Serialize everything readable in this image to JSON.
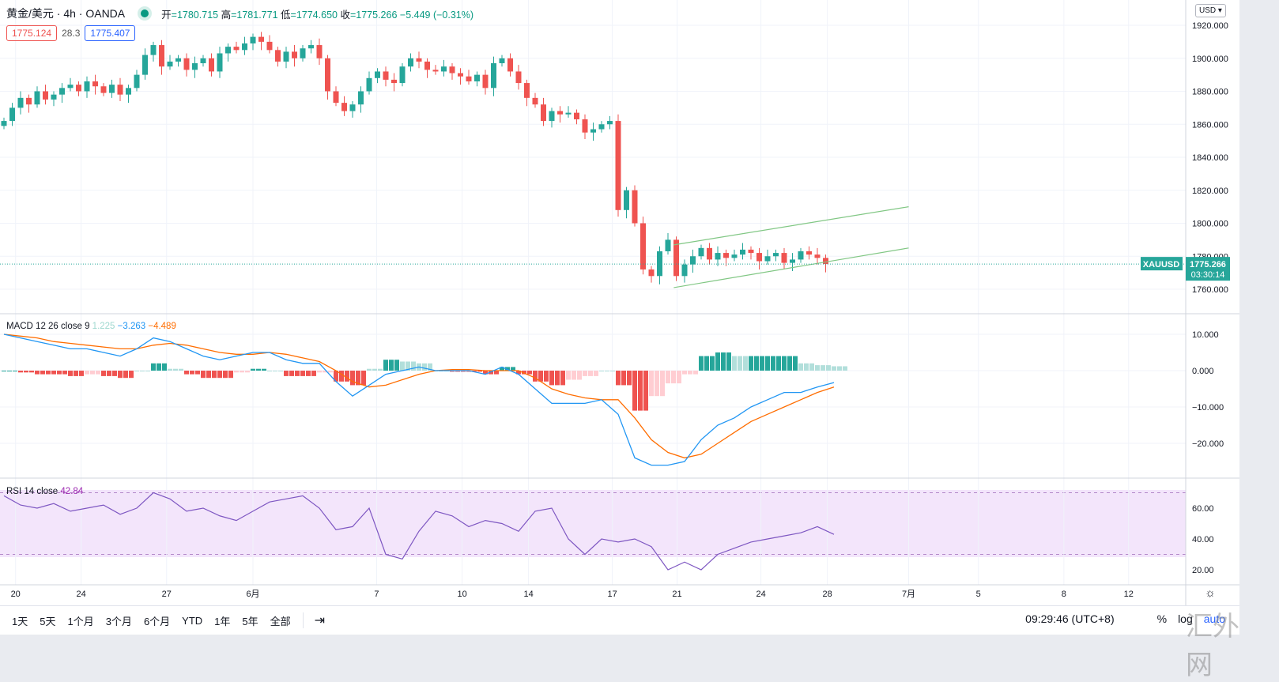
{
  "header": {
    "symbol": "黄金/美元 · 4h · OANDA",
    "open_label": "开",
    "open": "=1780.715",
    "high_label": "高",
    "high": "=1781.771",
    "low_label": "低",
    "low": "=1774.650",
    "close_label": "收",
    "close": "=1775.266",
    "change": "−5.449 (−0.31%)",
    "bid": "1775.124",
    "spread": "28.3",
    "ask": "1775.407"
  },
  "currency": "USD",
  "price_label": {
    "symbol": "XAUUSD",
    "price": "1775.266",
    "countdown": "03:30:14"
  },
  "macd_legend": {
    "name": "MACD 12 26 close 9",
    "hist": "1.225",
    "macd": "−3.263",
    "signal": "−4.489"
  },
  "rsi_legend": {
    "name": "RSI 14 close",
    "value": "42.84"
  },
  "toolbar": {
    "ranges": [
      "1天",
      "5天",
      "1个月",
      "3个月",
      "6个月",
      "YTD",
      "1年",
      "5年",
      "全部"
    ],
    "time": "09:29:46 (UTC+8)",
    "percent": "%",
    "log": "log",
    "auto": "auto"
  },
  "watermark": "汇外网",
  "colors": {
    "up": "#26a69a",
    "down": "#ef5350",
    "macd": "#2196f3",
    "signal": "#ff6d00",
    "rsi": "#7e57c2",
    "channel": "#4caf50"
  },
  "chart_data": {
    "type": "candlestick",
    "price_axis": {
      "ticks": [
        1760,
        1780,
        1800,
        1820,
        1840,
        1860,
        1880,
        1900,
        1920
      ],
      "labels": [
        "1760.000",
        "1780.000",
        "1800.000",
        "1820.000",
        "1840.000",
        "1860.000",
        "1880.000",
        "1900.000",
        "1920.000"
      ],
      "range": [
        1752,
        1935
      ]
    },
    "last_price": 1775.266,
    "closes": [
      1862,
      1870,
      1876,
      1872,
      1880,
      1875,
      1878,
      1882,
      1884,
      1880,
      1886,
      1883,
      1879,
      1884,
      1878,
      1882,
      1890,
      1902,
      1908,
      1895,
      1898,
      1900,
      1893,
      1897,
      1900,
      1892,
      1903,
      1907,
      1905,
      1909,
      1913,
      1910,
      1905,
      1898,
      1904,
      1900,
      1906,
      1908,
      1900,
      1880,
      1873,
      1868,
      1872,
      1880,
      1888,
      1892,
      1887,
      1885,
      1895,
      1900,
      1898,
      1893,
      1892,
      1895,
      1891,
      1889,
      1886,
      1890,
      1882,
      1897,
      1900,
      1892,
      1885,
      1876,
      1872,
      1862,
      1868,
      1866,
      1867,
      1863,
      1855,
      1857,
      1860,
      1862,
      1808,
      1820,
      1800,
      1772,
      1768,
      1783,
      1790,
      1768,
      1775,
      1780,
      1785,
      1778,
      1782,
      1779,
      1781,
      1784,
      1782,
      1777,
      1780,
      1782,
      1776,
      1778,
      1783,
      1781,
      1779,
      1775.266
    ],
    "channel": [
      {
        "from": [
          80.7,
          1786.9
        ],
        "to": [
          109,
          1810
        ]
      },
      {
        "from": [
          80.7,
          1761
        ],
        "to": [
          109,
          1785
        ]
      }
    ],
    "time_axis": [
      {
        "label": "20",
        "bar": 1.4
      },
      {
        "label": "24",
        "bar": 9.3
      },
      {
        "label": "27",
        "bar": 19.6
      },
      {
        "label": "6月",
        "bar": 30
      },
      {
        "label": "7",
        "bar": 44.9
      },
      {
        "label": "10",
        "bar": 55.2
      },
      {
        "label": "14",
        "bar": 63.2
      },
      {
        "label": "17",
        "bar": 73.3
      },
      {
        "label": "21",
        "bar": 81.1
      },
      {
        "label": "24",
        "bar": 91.2
      },
      {
        "label": "28",
        "bar": 99.2
      },
      {
        "label": "7月",
        "bar": 109
      },
      {
        "label": "5",
        "bar": 117.4
      },
      {
        "label": "8",
        "bar": 127.7
      },
      {
        "label": "12",
        "bar": 135.5
      }
    ],
    "macd": {
      "ticks": [
        10,
        0,
        -10,
        -20
      ],
      "labels": [
        "10.000",
        "0.000",
        "−10.000",
        "−20.000"
      ],
      "macd": [
        10,
        9,
        8,
        7,
        6,
        6,
        5,
        4,
        6,
        9,
        8,
        6,
        4,
        3,
        4,
        5,
        5,
        3,
        2,
        2,
        -3,
        -7,
        -4,
        -1,
        0,
        1,
        0,
        0,
        0,
        -1,
        1,
        -1,
        -5,
        -9,
        -9,
        -9,
        -8,
        -12,
        -24,
        -26,
        -26,
        -25,
        -19,
        -15,
        -13,
        -10,
        -8,
        -6,
        -6,
        -4.5,
        -3.3
      ],
      "signal": [
        10,
        9.5,
        9,
        8,
        7.5,
        7,
        6.5,
        6,
        6,
        7,
        7.5,
        7,
        6,
        5,
        4.5,
        4.5,
        5,
        4.5,
        3.5,
        2.5,
        0,
        -3,
        -4.5,
        -4,
        -2.5,
        -1,
        0,
        0.3,
        0.3,
        0,
        0,
        0,
        -2,
        -5,
        -6.5,
        -7.5,
        -8,
        -8,
        -13,
        -19,
        -22.5,
        -24,
        -23,
        -20,
        -17,
        -14,
        -12,
        -10,
        -8,
        -6,
        -4.5
      ]
    },
    "rsi": {
      "ticks": [
        60,
        40,
        20
      ],
      "labels": [
        "60.00",
        "40.00",
        "20.00"
      ],
      "bands": [
        70,
        30
      ],
      "values": [
        68,
        62,
        60,
        63,
        58,
        60,
        62,
        56,
        60,
        70,
        66,
        58,
        60,
        55,
        52,
        58,
        64,
        66,
        68,
        60,
        46,
        48,
        60,
        30,
        27,
        45,
        58,
        55,
        48,
        52,
        50,
        45,
        58,
        60,
        40,
        30,
        40,
        38,
        40,
        35,
        20,
        25,
        20,
        30,
        34,
        38,
        40,
        42,
        44,
        48,
        43
      ]
    }
  }
}
